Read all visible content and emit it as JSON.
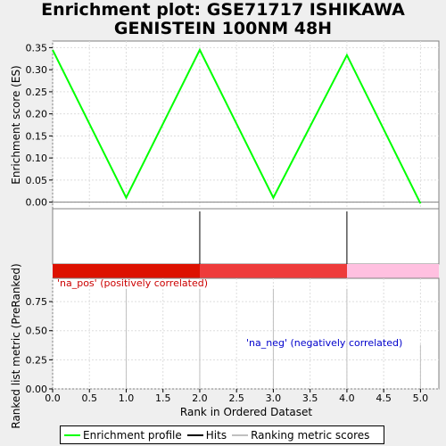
{
  "title": {
    "line1": "Enrichment plot: GSE71717 ISHIKAWA",
    "line2": "GENISTEIN 100NM 48H"
  },
  "colors": {
    "profile": "#00ff00",
    "hits": "#000000",
    "metric": "#c0c0c0",
    "pos_bar": "#dd1100",
    "mid_bar": "#ee3b3b",
    "neg_bar": "#ffc0e0",
    "pos_text": "#cc0000",
    "neg_text": "#0000cc"
  },
  "chart_data": [
    {
      "type": "line",
      "ylabel": "Enrichment score (ES)",
      "ylim": [
        -0.015,
        0.365
      ],
      "yticks": [
        "0.00",
        "0.05",
        "0.10",
        "0.15",
        "0.20",
        "0.25",
        "0.30",
        "0.35"
      ],
      "series": [
        {
          "name": "Enrichment profile",
          "x": [
            0,
            1,
            2,
            3,
            4,
            5
          ],
          "y": [
            0.345,
            0.01,
            0.345,
            0.01,
            0.333,
            -0.003
          ]
        }
      ]
    },
    {
      "type": "hits",
      "series": [
        {
          "name": "Hits",
          "x": [
            2,
            4
          ]
        }
      ]
    },
    {
      "type": "bar",
      "xlabel": "Rank in Ordered Dataset",
      "ylabel": "Ranked list metric (PreRanked)",
      "xlim": [
        0,
        5.25
      ],
      "ylim": [
        0,
        0.95
      ],
      "xticks": [
        "0.0",
        "0.5",
        "1.0",
        "1.5",
        "2.0",
        "2.5",
        "3.0",
        "3.5",
        "4.0",
        "4.5",
        "5.0"
      ],
      "yticks": [
        "0.00",
        "0.25",
        "0.50",
        "0.75"
      ],
      "series": [
        {
          "name": "Ranking metric scores",
          "x": [
            1,
            2,
            3,
            4,
            5
          ],
          "y": [
            0.86,
            0.86,
            0.86,
            0.86,
            0.38
          ]
        }
      ],
      "annotations": {
        "pos": "'na_pos' (positively correlated)",
        "neg": "'na_neg' (negatively correlated)"
      }
    }
  ],
  "legend": {
    "profile": "Enrichment profile",
    "hits": "Hits",
    "metric": "Ranking metric scores"
  }
}
